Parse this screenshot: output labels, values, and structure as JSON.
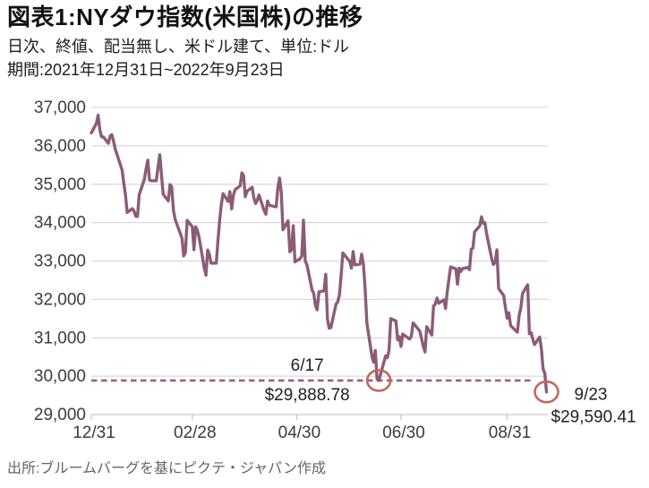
{
  "header": {
    "title": "図表1:NYダウ指数(米国株)の推移",
    "subtitle": "日次、終値、配当無し、米ドル建て、単位:ドル",
    "period": "期間:2021年12月31日~2022年9月23日"
  },
  "footer": {
    "source": "出所:ブルームバーグを基にピクテ・ジャパン作成"
  },
  "colors": {
    "line": "#8C5C77",
    "dashed_line": "#96617E",
    "circle": "#C2685D",
    "grid": "#D9D9D9",
    "axis": "#C8C8C8",
    "axis_text": "#3C3C3C",
    "annotation_text": "#1F1F1F"
  },
  "chart_data": {
    "type": "line",
    "title": "NYダウ指数(米国株)の推移",
    "xlabel": "",
    "ylabel": "ドル",
    "ylim": [
      29000,
      37000
    ],
    "grid": "horizontal",
    "x_range": [
      "2021-12-31",
      "2022-09-23"
    ],
    "y_tick_values": [
      37000,
      36000,
      35000,
      34000,
      33000,
      32000,
      31000,
      30000,
      29000
    ],
    "y_tick_labels": [
      "37,000",
      "36,000",
      "35,000",
      "34,000",
      "33,000",
      "32,000",
      "31,000",
      "30,000",
      "29,000"
    ],
    "x_ticks": [
      {
        "date": "12-31",
        "label": "12/31"
      },
      {
        "date": "02-28",
        "label": "02/28"
      },
      {
        "date": "04-30",
        "label": "04/30"
      },
      {
        "date": "06-30",
        "label": "06/30"
      },
      {
        "date": "08-31",
        "label": "08/31"
      }
    ],
    "reference_line": {
      "value": 29888.78,
      "style": "dashed"
    },
    "annotations": [
      {
        "date": "06-17",
        "value": 29888.78,
        "label_date": "6/17",
        "label_value": "$29,888.78",
        "side": "left",
        "circle": true
      },
      {
        "date": "09-23",
        "value": 29590.41,
        "label_date": "9/23",
        "label_value": "$29,590.41",
        "side": "right",
        "circle": true
      }
    ],
    "series": [
      {
        "name": "NYダウ指数",
        "dates": [
          "12-31",
          "01-03",
          "01-04",
          "01-05",
          "01-06",
          "01-07",
          "01-10",
          "01-11",
          "01-12",
          "01-13",
          "01-14",
          "01-18",
          "01-19",
          "01-20",
          "01-21",
          "01-24",
          "01-25",
          "01-26",
          "01-27",
          "01-28",
          "01-31",
          "02-01",
          "02-02",
          "02-03",
          "02-04",
          "02-07",
          "02-08",
          "02-09",
          "02-10",
          "02-11",
          "02-14",
          "02-15",
          "02-16",
          "02-17",
          "02-18",
          "02-22",
          "02-23",
          "02-24",
          "02-25",
          "02-28",
          "03-01",
          "03-02",
          "03-03",
          "03-04",
          "03-07",
          "03-08",
          "03-09",
          "03-10",
          "03-11",
          "03-14",
          "03-15",
          "03-16",
          "03-17",
          "03-18",
          "03-21",
          "03-22",
          "03-23",
          "03-24",
          "03-25",
          "03-28",
          "03-29",
          "03-30",
          "03-31",
          "04-01",
          "04-04",
          "04-05",
          "04-06",
          "04-07",
          "04-08",
          "04-11",
          "04-12",
          "04-13",
          "04-14",
          "04-18",
          "04-19",
          "04-20",
          "04-21",
          "04-22",
          "04-25",
          "04-26",
          "04-27",
          "04-28",
          "04-29",
          "05-02",
          "05-03",
          "05-04",
          "05-05",
          "05-06",
          "05-09",
          "05-10",
          "05-11",
          "05-12",
          "05-13",
          "05-16",
          "05-17",
          "05-18",
          "05-19",
          "05-20",
          "05-23",
          "05-24",
          "05-25",
          "05-26",
          "05-27",
          "05-31",
          "06-01",
          "06-02",
          "06-03",
          "06-06",
          "06-07",
          "06-08",
          "06-09",
          "06-10",
          "06-13",
          "06-14",
          "06-15",
          "06-16",
          "06-17",
          "06-21",
          "06-22",
          "06-23",
          "06-24",
          "06-27",
          "06-28",
          "06-29",
          "06-30",
          "07-01",
          "07-05",
          "07-06",
          "07-07",
          "07-08",
          "07-11",
          "07-12",
          "07-13",
          "07-14",
          "07-15",
          "07-18",
          "07-19",
          "07-20",
          "07-21",
          "07-22",
          "07-25",
          "07-26",
          "07-27",
          "07-28",
          "07-29",
          "08-01",
          "08-02",
          "08-03",
          "08-04",
          "08-05",
          "08-08",
          "08-09",
          "08-10",
          "08-11",
          "08-12",
          "08-15",
          "08-16",
          "08-17",
          "08-18",
          "08-19",
          "08-22",
          "08-23",
          "08-24",
          "08-25",
          "08-26",
          "08-29",
          "08-30",
          "08-31",
          "09-01",
          "09-02",
          "09-06",
          "09-07",
          "09-08",
          "09-09",
          "09-12",
          "09-13",
          "09-14",
          "09-15",
          "09-16",
          "09-19",
          "09-20",
          "09-21",
          "09-22",
          "09-23"
        ],
        "values": [
          36338,
          36585,
          36800,
          36407,
          36236,
          36232,
          36068,
          36252,
          36290,
          36114,
          35912,
          35369,
          35029,
          34715,
          34265,
          34364,
          34297,
          34168,
          34160,
          34725,
          35132,
          35405,
          35629,
          35111,
          35090,
          35091,
          35462,
          35768,
          35242,
          34738,
          34566,
          34989,
          34934,
          34312,
          34079,
          33597,
          33132,
          33224,
          34059,
          33893,
          33295,
          33891,
          33795,
          33615,
          32817,
          32632,
          33286,
          33174,
          32944,
          32945,
          33544,
          34063,
          34481,
          34755,
          34553,
          34807,
          34358,
          34708,
          34861,
          34956,
          35294,
          35228,
          34678,
          34818,
          34922,
          34641,
          34497,
          34584,
          34721,
          34308,
          34220,
          34565,
          34451,
          34412,
          34911,
          35160,
          34793,
          33811,
          34049,
          33240,
          33302,
          33916,
          32977,
          33061,
          33129,
          34061,
          32998,
          32899,
          32246,
          32160,
          31834,
          31730,
          32197,
          32223,
          32655,
          31490,
          31253,
          31262,
          31880,
          31929,
          32120,
          32637,
          33213,
          32990,
          32813,
          33248,
          32900,
          32916,
          33180,
          32911,
          32273,
          31393,
          30517,
          30365,
          30669,
          29927,
          29888.78,
          30530,
          30483,
          30677,
          31501,
          31438,
          30947,
          31029,
          30775,
          31097,
          30968,
          31038,
          31385,
          31338,
          31173,
          30981,
          30773,
          30630,
          31288,
          31073,
          31827,
          31875,
          32037,
          31899,
          31990,
          31762,
          32198,
          32530,
          32845,
          32798,
          32396,
          32813,
          32727,
          32803,
          32832,
          32774,
          33310,
          33337,
          33761,
          33912,
          34152,
          33981,
          33999,
          33707,
          33064,
          32910,
          32969,
          33292,
          32283,
          32099,
          31790,
          31510,
          31656,
          31318,
          31145,
          31581,
          31774,
          32152,
          32381,
          31105,
          31135,
          30962,
          30822,
          31020,
          30706,
          30184,
          30077,
          29590.41
        ]
      }
    ]
  }
}
